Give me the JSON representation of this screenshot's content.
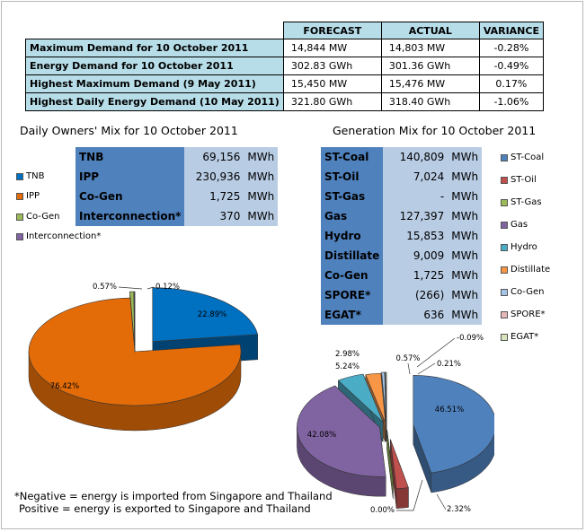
{
  "summary": {
    "headers": [
      "FORECAST",
      "ACTUAL",
      "VARIANCE"
    ],
    "rows": [
      {
        "label": "Maximum Demand for 10 October 2011",
        "forecast": "14,844  MW",
        "actual": "14,803  MW",
        "variance": "-0.28%"
      },
      {
        "label": "Energy Demand for 10 October 2011",
        "forecast": "302.83  GWh",
        "actual": "301.36  GWh",
        "variance": "-0.49%"
      },
      {
        "label": "Highest Maximum Demand (9 May 2011)",
        "forecast": "15,450  MW",
        "actual": "15,476  MW",
        "variance": "0.17%"
      },
      {
        "label": "Highest Daily Energy Demand (10 May 2011)",
        "forecast": "321.80  GWh",
        "actual": "318.40  GWh",
        "variance": "-1.06%"
      }
    ]
  },
  "owners": {
    "title": "Daily Owners' Mix for 10 October 2011",
    "rows": [
      {
        "name": "TNB",
        "value": "69,156",
        "unit": "MWh"
      },
      {
        "name": "IPP",
        "value": "230,936",
        "unit": "MWh"
      },
      {
        "name": "Co-Gen",
        "value": "1,725",
        "unit": "MWh"
      },
      {
        "name": "Interconnection*",
        "value": "370",
        "unit": "MWh"
      }
    ]
  },
  "generation": {
    "title": "Generation Mix for 10 October 2011",
    "rows": [
      {
        "name": "ST-Coal",
        "value": "140,809",
        "unit": "MWh"
      },
      {
        "name": "ST-Oil",
        "value": "7,024",
        "unit": "MWh"
      },
      {
        "name": "ST-Gas",
        "value": "-",
        "unit": "MWh"
      },
      {
        "name": "Gas",
        "value": "127,397",
        "unit": "MWh"
      },
      {
        "name": "Hydro",
        "value": "15,853",
        "unit": "MWh"
      },
      {
        "name": "Distillate",
        "value": "9,009",
        "unit": "MWh"
      },
      {
        "name": "Co-Gen",
        "value": "1,725",
        "unit": "MWh"
      },
      {
        "name": "SPORE*",
        "value": "(266)",
        "unit": "MWh"
      },
      {
        "name": "EGAT*",
        "value": "636",
        "unit": "MWh"
      }
    ]
  },
  "footnote": {
    "line1": "*Negative = energy is imported from Singapore and Thailand",
    "line2": "Positive = energy is exported to Singapore and Thailand"
  },
  "chart_data": [
    {
      "type": "pie",
      "title": "Daily Owners' Mix for 10 October 2011",
      "categories": [
        "TNB",
        "IPP",
        "Co-Gen",
        "Interconnection*"
      ],
      "values": [
        22.89,
        76.42,
        0.57,
        0.12
      ],
      "labels": [
        "22.89%",
        "76.42%",
        "0.57%",
        "0.12%"
      ],
      "colors": [
        "#0070c0",
        "#e36c09",
        "#9bbb59",
        "#8064a2"
      ],
      "legend_placement": "left"
    },
    {
      "type": "pie",
      "title": "Generation Mix for 10 October 2011",
      "categories": [
        "ST-Coal",
        "ST-Oil",
        "ST-Gas",
        "Gas",
        "Hydro",
        "Distillate",
        "Co-Gen",
        "SPORE*",
        "EGAT*"
      ],
      "values": [
        46.51,
        2.32,
        0.0,
        42.08,
        5.24,
        2.98,
        0.57,
        0.09,
        0.21
      ],
      "labels": [
        "46.51%",
        "2.32%",
        "0.00%",
        "42.08%",
        "5.24%",
        "2.98%",
        "0.57%",
        "-0.09%",
        "0.21%"
      ],
      "colors": [
        "#4f81bd",
        "#c0504d",
        "#9bbb59",
        "#8064a2",
        "#4bacc6",
        "#f79646",
        "#a5c5e8",
        "#e6b9b8",
        "#d8e4bc"
      ],
      "legend_placement": "right"
    }
  ]
}
